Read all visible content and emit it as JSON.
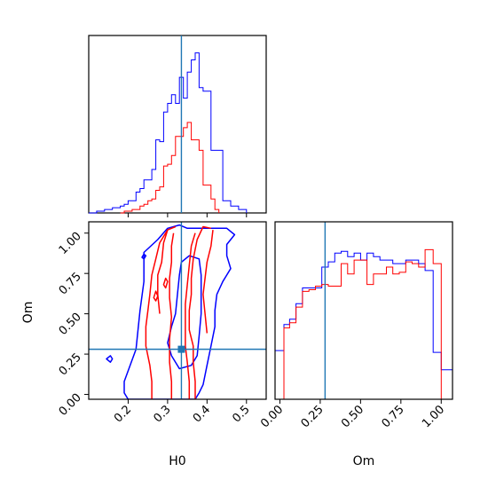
{
  "colors": {
    "blue": "#0000ff",
    "red": "#ff0000",
    "truth": "#1f77b4",
    "frame": "#000000"
  },
  "chart_data": {
    "type": "corner",
    "parameters": [
      "H0",
      "Om"
    ],
    "xlabels": {
      "H0": "H0",
      "Om": "Om"
    },
    "ylabels": {
      "Om": "Om"
    },
    "truth": {
      "H0": 0.335,
      "Om": 0.28
    },
    "axes": {
      "H0": {
        "range": [
          0.1,
          0.55
        ],
        "ticks": [
          "0.2",
          "0.3",
          "0.4",
          "0.5"
        ]
      },
      "Om": {
        "range": [
          -0.03,
          1.07
        ],
        "ticks": [
          "0.00",
          "0.25",
          "0.50",
          "0.75",
          "1.00"
        ]
      }
    },
    "hist_H0": {
      "series": [
        {
          "color": "blue",
          "edges": [
            0.1,
            0.11,
            0.12,
            0.13,
            0.14,
            0.15,
            0.16,
            0.17,
            0.18,
            0.19,
            0.2,
            0.21,
            0.22,
            0.23,
            0.24,
            0.25,
            0.26,
            0.27,
            0.28,
            0.29,
            0.3,
            0.31,
            0.32,
            0.33,
            0.34,
            0.35,
            0.36,
            0.37,
            0.38,
            0.39,
            0.4,
            0.41,
            0.42,
            0.43,
            0.44,
            0.45,
            0.46,
            0.47,
            0.48,
            0.49,
            0.5
          ],
          "counts": [
            0,
            0,
            0.01,
            0.01,
            0.02,
            0.02,
            0.03,
            0.03,
            0.04,
            0.05,
            0.07,
            0.07,
            0.12,
            0.14,
            0.19,
            0.19,
            0.25,
            0.42,
            0.41,
            0.58,
            0.63,
            0.68,
            0.63,
            0.78,
            0.66,
            0.81,
            0.88,
            0.92,
            0.72,
            0.7,
            0.7,
            0.36,
            0.36,
            0.36,
            0.07,
            0.07,
            0.04,
            0.04,
            0.02,
            0.02
          ]
        },
        {
          "color": "red",
          "edges": [
            0.18,
            0.19,
            0.2,
            0.21,
            0.22,
            0.23,
            0.24,
            0.25,
            0.26,
            0.27,
            0.28,
            0.29,
            0.3,
            0.31,
            0.32,
            0.33,
            0.34,
            0.35,
            0.36,
            0.37,
            0.38,
            0.39,
            0.4,
            0.41,
            0.42,
            0.43
          ],
          "counts": [
            0,
            0.01,
            0.01,
            0.02,
            0.02,
            0.04,
            0.05,
            0.07,
            0.08,
            0.13,
            0.15,
            0.27,
            0.28,
            0.33,
            0.44,
            0.44,
            0.49,
            0.52,
            0.42,
            0.42,
            0.36,
            0.16,
            0.16,
            0.08,
            0.02
          ]
        }
      ],
      "ymax": 1.02
    },
    "hist_Om": {
      "series": [
        {
          "color": "blue",
          "edges": [
            -0.03,
            0.025,
            0.06,
            0.1,
            0.14,
            0.18,
            0.22,
            0.26,
            0.3,
            0.34,
            0.38,
            0.42,
            0.46,
            0.5,
            0.54,
            0.58,
            0.62,
            0.66,
            0.7,
            0.74,
            0.78,
            0.82,
            0.86,
            0.9,
            0.95,
            1.0,
            1.07
          ],
          "counts": [
            0.28,
            0.43,
            0.46,
            0.55,
            0.64,
            0.64,
            0.64,
            0.76,
            0.79,
            0.84,
            0.85,
            0.82,
            0.84,
            0.8,
            0.84,
            0.82,
            0.8,
            0.8,
            0.78,
            0.78,
            0.8,
            0.8,
            0.78,
            0.74,
            0.27,
            0.17
          ]
        },
        {
          "color": "red",
          "edges": [
            -0.03,
            0.025,
            0.06,
            0.1,
            0.14,
            0.18,
            0.22,
            0.26,
            0.3,
            0.34,
            0.38,
            0.42,
            0.46,
            0.5,
            0.54,
            0.58,
            0.62,
            0.66,
            0.7,
            0.74,
            0.78,
            0.82,
            0.86,
            0.9,
            0.95,
            1.0
          ],
          "counts": [
            0,
            0.41,
            0.44,
            0.53,
            0.62,
            0.63,
            0.65,
            0.66,
            0.65,
            0.65,
            0.78,
            0.72,
            0.8,
            0.8,
            0.66,
            0.72,
            0.72,
            0.76,
            0.72,
            0.73,
            0.79,
            0.78,
            0.76,
            0.86,
            0.78
          ]
        }
      ],
      "ymax": 1.02
    },
    "contours": [
      {
        "color": "blue",
        "closed": true,
        "points": [
          [
            0.3,
            -0.03
          ],
          [
            0.2,
            -0.03
          ],
          [
            0.19,
            0.01
          ],
          [
            0.19,
            0.08
          ],
          [
            0.22,
            0.28
          ],
          [
            0.23,
            0.52
          ],
          [
            0.24,
            0.7
          ],
          [
            0.24,
            0.88
          ],
          [
            0.275,
            0.96
          ],
          [
            0.3,
            1.03
          ],
          [
            0.33,
            1.05
          ],
          [
            0.35,
            1.03
          ],
          [
            0.39,
            1.03
          ],
          [
            0.45,
            1.03
          ],
          [
            0.47,
            0.99
          ],
          [
            0.45,
            0.93
          ],
          [
            0.45,
            0.86
          ],
          [
            0.46,
            0.78
          ],
          [
            0.44,
            0.7
          ],
          [
            0.425,
            0.62
          ],
          [
            0.42,
            0.52
          ],
          [
            0.42,
            0.42
          ],
          [
            0.41,
            0.3
          ],
          [
            0.4,
            0.18
          ],
          [
            0.39,
            0.06
          ],
          [
            0.38,
            0.01
          ],
          [
            0.37,
            -0.03
          ]
        ]
      },
      {
        "color": "blue",
        "closed": true,
        "points": [
          [
            0.33,
            0.16
          ],
          [
            0.31,
            0.24
          ],
          [
            0.3,
            0.32
          ],
          [
            0.31,
            0.42
          ],
          [
            0.32,
            0.5
          ],
          [
            0.325,
            0.62
          ],
          [
            0.33,
            0.74
          ],
          [
            0.335,
            0.82
          ],
          [
            0.355,
            0.86
          ],
          [
            0.38,
            0.84
          ],
          [
            0.385,
            0.74
          ],
          [
            0.385,
            0.62
          ],
          [
            0.385,
            0.5
          ],
          [
            0.38,
            0.36
          ],
          [
            0.375,
            0.24
          ],
          [
            0.36,
            0.18
          ]
        ]
      },
      {
        "color": "blue",
        "closed": true,
        "points": [
          [
            0.235,
            0.85
          ],
          [
            0.24,
            0.87
          ],
          [
            0.245,
            0.86
          ],
          [
            0.24,
            0.84
          ]
        ]
      },
      {
        "color": "blue",
        "closed": true,
        "points": [
          [
            0.145,
            0.22
          ],
          [
            0.155,
            0.24
          ],
          [
            0.16,
            0.22
          ],
          [
            0.155,
            0.2
          ]
        ]
      },
      {
        "color": "red",
        "closed": false,
        "points": [
          [
            0.26,
            -0.03
          ],
          [
            0.26,
            0.08
          ],
          [
            0.255,
            0.18
          ],
          [
            0.245,
            0.3
          ],
          [
            0.245,
            0.42
          ],
          [
            0.25,
            0.52
          ],
          [
            0.255,
            0.62
          ],
          [
            0.26,
            0.74
          ],
          [
            0.27,
            0.84
          ],
          [
            0.28,
            0.94
          ],
          [
            0.3,
            1.02
          ],
          [
            0.32,
            1.04
          ]
        ]
      },
      {
        "color": "red",
        "closed": false,
        "points": [
          [
            0.28,
            0.5
          ],
          [
            0.275,
            0.62
          ],
          [
            0.275,
            0.74
          ],
          [
            0.285,
            0.82
          ],
          [
            0.29,
            0.94
          ],
          [
            0.3,
            1.02
          ]
        ]
      },
      {
        "color": "red",
        "closed": false,
        "points": [
          [
            0.31,
            -0.03
          ],
          [
            0.31,
            0.08
          ],
          [
            0.305,
            0.2
          ],
          [
            0.305,
            0.34
          ],
          [
            0.31,
            0.48
          ],
          [
            0.305,
            0.6
          ],
          [
            0.305,
            0.72
          ],
          [
            0.31,
            0.82
          ],
          [
            0.31,
            0.92
          ],
          [
            0.315,
            1.0
          ]
        ]
      },
      {
        "color": "red",
        "closed": false,
        "points": [
          [
            0.37,
            -0.03
          ],
          [
            0.37,
            0.08
          ],
          [
            0.365,
            0.2
          ],
          [
            0.365,
            0.3
          ],
          [
            0.355,
            0.4
          ],
          [
            0.355,
            0.52
          ],
          [
            0.36,
            0.62
          ],
          [
            0.36,
            0.72
          ],
          [
            0.365,
            0.84
          ],
          [
            0.375,
            0.96
          ],
          [
            0.39,
            1.04
          ],
          [
            0.41,
            1.03
          ]
        ]
      },
      {
        "color": "red",
        "closed": false,
        "points": [
          [
            0.355,
            -0.03
          ],
          [
            0.355,
            0.08
          ],
          [
            0.35,
            0.2
          ],
          [
            0.345,
            0.3
          ],
          [
            0.345,
            0.42
          ],
          [
            0.345,
            0.56
          ],
          [
            0.35,
            0.68
          ],
          [
            0.355,
            0.8
          ],
          [
            0.36,
            0.92
          ],
          [
            0.37,
            1.0
          ]
        ]
      },
      {
        "color": "red",
        "closed": false,
        "points": [
          [
            0.4,
            0.38
          ],
          [
            0.395,
            0.5
          ],
          [
            0.39,
            0.62
          ],
          [
            0.395,
            0.72
          ],
          [
            0.4,
            0.82
          ],
          [
            0.41,
            0.92
          ],
          [
            0.415,
            1.02
          ]
        ]
      },
      {
        "color": "red",
        "closed": true,
        "points": [
          [
            0.265,
            0.6
          ],
          [
            0.27,
            0.64
          ],
          [
            0.275,
            0.61
          ],
          [
            0.27,
            0.58
          ]
        ]
      },
      {
        "color": "red",
        "closed": true,
        "points": [
          [
            0.29,
            0.68
          ],
          [
            0.295,
            0.72
          ],
          [
            0.3,
            0.7
          ],
          [
            0.295,
            0.66
          ]
        ]
      }
    ]
  }
}
